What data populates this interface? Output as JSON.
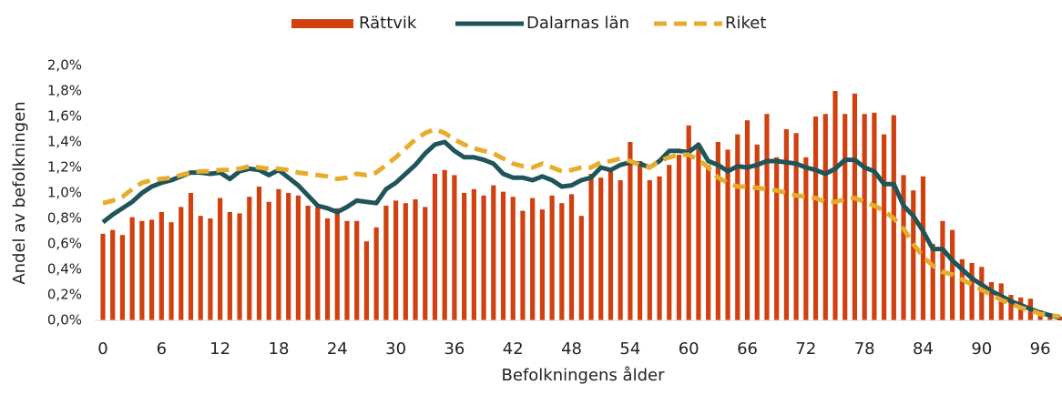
{
  "chart_data": {
    "type": "bar_line",
    "xlabel": "Befolkningens ålder",
    "ylabel": "Andel av befolkningen",
    "categories": [
      "0",
      null,
      null,
      null,
      null,
      null,
      "6",
      null,
      null,
      null,
      null,
      null,
      "12",
      null,
      null,
      null,
      null,
      null,
      "18",
      null,
      null,
      null,
      null,
      null,
      "24",
      null,
      null,
      null,
      null,
      null,
      "30",
      null,
      null,
      null,
      null,
      null,
      "36",
      null,
      null,
      null,
      null,
      null,
      "42",
      null,
      null,
      null,
      null,
      null,
      "48",
      null,
      null,
      null,
      null,
      null,
      "54",
      null,
      null,
      null,
      null,
      null,
      "60",
      null,
      null,
      null,
      null,
      null,
      "66",
      null,
      null,
      null,
      null,
      null,
      "72",
      null,
      null,
      null,
      null,
      null,
      "78",
      null,
      null,
      null,
      null,
      null,
      "84",
      null,
      null,
      null,
      null,
      null,
      "90",
      null,
      null,
      null,
      null,
      null,
      "96",
      null,
      null
    ],
    "series": [
      {
        "name": "Rättvik",
        "kind": "bar",
        "color": "#d1400f",
        "values": [
          0.68,
          0.71,
          0.67,
          0.81,
          0.78,
          0.79,
          0.85,
          0.77,
          0.89,
          1.0,
          0.82,
          0.8,
          0.96,
          0.85,
          0.84,
          0.97,
          1.05,
          0.93,
          1.03,
          1.0,
          0.98,
          0.9,
          0.89,
          0.8,
          0.88,
          0.78,
          0.78,
          0.62,
          0.73,
          0.9,
          0.94,
          0.92,
          0.95,
          0.89,
          1.15,
          1.18,
          1.14,
          1.0,
          1.03,
          0.98,
          1.06,
          1.01,
          0.97,
          0.86,
          0.96,
          0.87,
          0.98,
          0.92,
          0.99,
          0.82,
          1.15,
          1.12,
          1.17,
          1.1,
          1.4,
          1.25,
          1.1,
          1.13,
          1.22,
          1.3,
          1.53,
          1.38,
          1.22,
          1.4,
          1.34,
          1.46,
          1.57,
          1.38,
          1.62,
          1.28,
          1.5,
          1.47,
          1.28,
          1.6,
          1.62,
          1.8,
          1.62,
          1.78,
          1.62,
          1.63,
          1.46,
          1.61,
          1.14,
          1.02,
          1.13,
          0.6,
          0.78,
          0.71,
          0.48,
          0.45,
          0.42,
          0.3,
          0.29,
          0.2,
          0.18,
          0.17,
          0.08,
          0.05,
          0.03
        ]
      },
      {
        "name": "Dalarnas län",
        "kind": "line",
        "color": "#1f5458",
        "values": [
          0.77,
          0.83,
          0.88,
          0.93,
          1.0,
          1.05,
          1.08,
          1.1,
          1.13,
          1.16,
          1.16,
          1.15,
          1.16,
          1.11,
          1.17,
          1.19,
          1.18,
          1.14,
          1.18,
          1.12,
          1.06,
          0.98,
          0.9,
          0.88,
          0.85,
          0.89,
          0.94,
          0.93,
          0.92,
          1.03,
          1.08,
          1.15,
          1.22,
          1.31,
          1.38,
          1.4,
          1.33,
          1.28,
          1.28,
          1.26,
          1.23,
          1.15,
          1.12,
          1.12,
          1.1,
          1.13,
          1.1,
          1.05,
          1.06,
          1.1,
          1.12,
          1.2,
          1.18,
          1.22,
          1.24,
          1.23,
          1.2,
          1.25,
          1.33,
          1.33,
          1.32,
          1.38,
          1.25,
          1.22,
          1.17,
          1.21,
          1.2,
          1.22,
          1.25,
          1.25,
          1.24,
          1.23,
          1.2,
          1.18,
          1.15,
          1.19,
          1.26,
          1.26,
          1.2,
          1.17,
          1.07,
          1.07,
          0.9,
          0.82,
          0.7,
          0.56,
          0.56,
          0.47,
          0.4,
          0.33,
          0.28,
          0.23,
          0.19,
          0.15,
          0.12,
          0.09,
          0.06,
          0.04,
          0.02
        ]
      },
      {
        "name": "Riket",
        "kind": "dashed",
        "color": "#e8ac2d",
        "values": [
          0.92,
          0.94,
          0.97,
          1.03,
          1.08,
          1.1,
          1.11,
          1.12,
          1.14,
          1.16,
          1.17,
          1.17,
          1.18,
          1.18,
          1.19,
          1.21,
          1.2,
          1.19,
          1.19,
          1.18,
          1.16,
          1.15,
          1.14,
          1.13,
          1.11,
          1.12,
          1.15,
          1.14,
          1.16,
          1.22,
          1.28,
          1.35,
          1.42,
          1.47,
          1.5,
          1.47,
          1.42,
          1.38,
          1.35,
          1.33,
          1.31,
          1.27,
          1.23,
          1.21,
          1.2,
          1.23,
          1.2,
          1.17,
          1.18,
          1.2,
          1.2,
          1.24,
          1.25,
          1.27,
          1.25,
          1.22,
          1.2,
          1.25,
          1.28,
          1.3,
          1.3,
          1.26,
          1.2,
          1.12,
          1.08,
          1.05,
          1.05,
          1.04,
          1.03,
          1.02,
          1.0,
          0.98,
          0.97,
          0.96,
          0.93,
          0.93,
          0.95,
          0.96,
          0.93,
          0.9,
          0.86,
          0.8,
          0.72,
          0.6,
          0.5,
          0.43,
          0.38,
          0.36,
          0.32,
          0.28,
          0.24,
          0.2,
          0.16,
          0.13,
          0.1,
          0.08,
          0.05,
          0.04,
          0.03
        ]
      }
    ],
    "ylim": [
      0,
      2.0
    ],
    "yticks": [
      {
        "value": 0,
        "label": "0,0%"
      },
      {
        "value": 0.2,
        "label": "0,2%"
      },
      {
        "value": 0.4,
        "label": "0,4%"
      },
      {
        "value": 0.6,
        "label": "0,6%"
      },
      {
        "value": 0.8,
        "label": "0,8%"
      },
      {
        "value": 1.0,
        "label": "1,0%"
      },
      {
        "value": 1.2,
        "label": "1,2%"
      },
      {
        "value": 1.4,
        "label": "1,4%"
      },
      {
        "value": 1.6,
        "label": "1,6%"
      },
      {
        "value": 1.8,
        "label": "1,8%"
      },
      {
        "value": 2.0,
        "label": "2,0%"
      }
    ],
    "legend": "top"
  }
}
